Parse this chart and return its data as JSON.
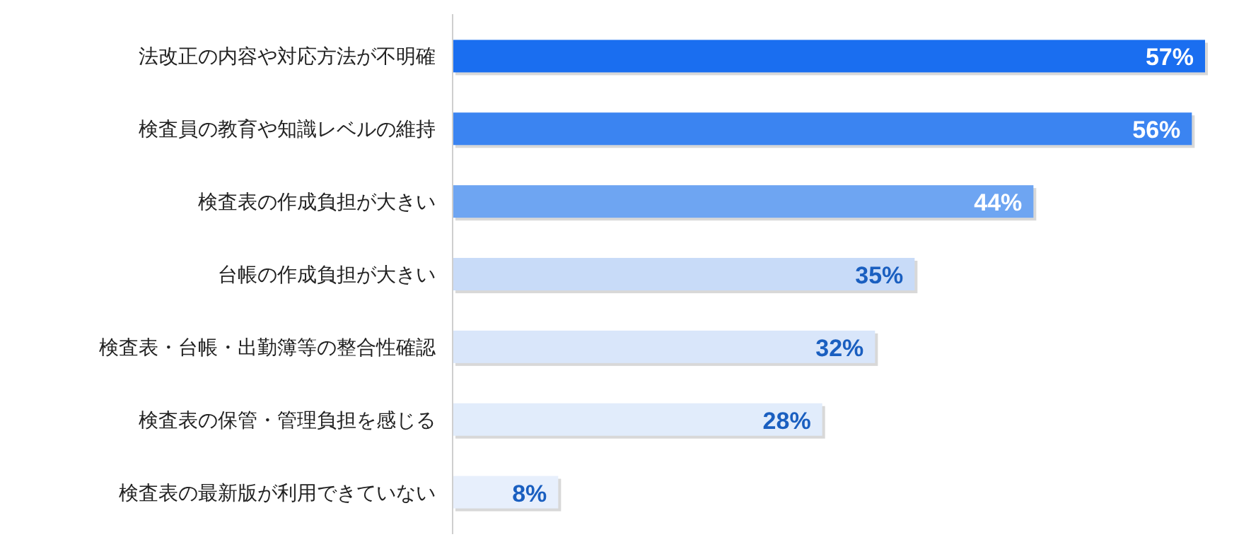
{
  "chart_data": {
    "type": "bar",
    "orientation": "horizontal",
    "categories": [
      "法改正の内容や対応方法が不明確",
      "検査員の教育や知識レベルの維持",
      "検査表の作成負担が大きい",
      "台帳の作成負担が大きい",
      "検査表・台帳・出勤簿等の整合性確認",
      "検査表の保管・管理負担を感じる",
      "検査表の最新版が利用できていない"
    ],
    "values": [
      57,
      56,
      44,
      35,
      32,
      28,
      8
    ],
    "value_labels": [
      "57%",
      "56%",
      "44%",
      "35%",
      "32%",
      "28%",
      "8%"
    ],
    "colors": [
      "#1a6ef0",
      "#3b84f1",
      "#6ea5f2",
      "#c8dbf8",
      "#d9e6fa",
      "#e1ecfb",
      "#e7effc"
    ]
  }
}
